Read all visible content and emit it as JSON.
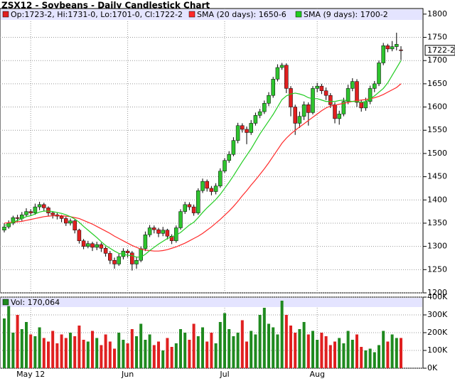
{
  "chart_data": [
    {
      "type": "candlestick",
      "title": "ZSX12 - Soybeans - Daily Candlestick Chart",
      "legend_label": "Op:1723-2, Hi:1731-0, Lo:1701-0, Cl:1722-2",
      "last_price_label": "1722-2",
      "up_color": "#2ec42e",
      "down_color": "#e02020",
      "categories": [
        null,
        null,
        null,
        null,
        null,
        null,
        "May 12",
        null,
        null,
        null,
        null,
        null,
        null,
        null,
        null,
        null,
        null,
        null,
        null,
        null,
        null,
        null,
        null,
        null,
        null,
        null,
        null,
        null,
        "Jun",
        null,
        null,
        null,
        null,
        null,
        null,
        null,
        null,
        null,
        null,
        null,
        null,
        null,
        null,
        null,
        null,
        null,
        null,
        null,
        null,
        null,
        "Jul",
        null,
        null,
        null,
        null,
        null,
        null,
        null,
        null,
        null,
        null,
        null,
        null,
        null,
        null,
        null,
        null,
        null,
        null,
        null,
        null,
        "Aug",
        null,
        null,
        null,
        null,
        null,
        null,
        null,
        null,
        null,
        null,
        null,
        null,
        null,
        null,
        null,
        null,
        null,
        null,
        null
      ],
      "open": [
        1335,
        1342,
        1350,
        1362,
        1360,
        1368,
        1375,
        1372,
        1385,
        1390,
        1383,
        1372,
        1368,
        1365,
        1360,
        1350,
        1355,
        1335,
        1312,
        1300,
        1306,
        1298,
        1304,
        1296,
        1285,
        1270,
        1262,
        1278,
        1290,
        1286,
        1262,
        1270,
        1295,
        1325,
        1340,
        1336,
        1328,
        1335,
        1322,
        1312,
        1340,
        1375,
        1390,
        1385,
        1372,
        1420,
        1440,
        1425,
        1418,
        1430,
        1462,
        1485,
        1498,
        1528,
        1560,
        1552,
        1545,
        1565,
        1582,
        1590,
        1608,
        1625,
        1660,
        1685,
        1690,
        1640,
        1600,
        1565,
        1580,
        1605,
        1588,
        1640,
        1645,
        1635,
        1625,
        1605,
        1575,
        1585,
        1612,
        1640,
        1655,
        1610,
        1598,
        1612,
        1640,
        1650,
        1695,
        1732,
        1725,
        1730,
        1723
      ],
      "high": [
        1350,
        1356,
        1366,
        1368,
        1374,
        1382,
        1380,
        1392,
        1396,
        1394,
        1386,
        1376,
        1372,
        1368,
        1364,
        1360,
        1358,
        1338,
        1316,
        1312,
        1310,
        1310,
        1308,
        1300,
        1290,
        1276,
        1284,
        1296,
        1294,
        1290,
        1278,
        1300,
        1332,
        1346,
        1345,
        1340,
        1342,
        1338,
        1326,
        1345,
        1380,
        1396,
        1395,
        1390,
        1425,
        1446,
        1444,
        1430,
        1436,
        1468,
        1490,
        1505,
        1535,
        1566,
        1565,
        1558,
        1572,
        1588,
        1596,
        1614,
        1632,
        1665,
        1692,
        1695,
        1694,
        1645,
        1605,
        1590,
        1612,
        1610,
        1645,
        1652,
        1650,
        1642,
        1630,
        1610,
        1592,
        1620,
        1648,
        1662,
        1660,
        1615,
        1620,
        1646,
        1656,
        1700,
        1738,
        1736,
        1742,
        1760,
        1731
      ],
      "low": [
        1330,
        1338,
        1346,
        1352,
        1355,
        1364,
        1366,
        1368,
        1378,
        1376,
        1366,
        1360,
        1358,
        1352,
        1344,
        1345,
        1328,
        1306,
        1294,
        1296,
        1290,
        1292,
        1288,
        1278,
        1262,
        1252,
        1258,
        1272,
        1276,
        1248,
        1252,
        1266,
        1290,
        1320,
        1328,
        1320,
        1322,
        1315,
        1305,
        1308,
        1336,
        1370,
        1378,
        1366,
        1368,
        1415,
        1418,
        1410,
        1412,
        1426,
        1458,
        1480,
        1494,
        1522,
        1545,
        1520,
        1540,
        1560,
        1576,
        1585,
        1602,
        1620,
        1655,
        1680,
        1630,
        1580,
        1540,
        1555,
        1572,
        1560,
        1584,
        1632,
        1628,
        1615,
        1598,
        1565,
        1562,
        1580,
        1606,
        1634,
        1600,
        1590,
        1592,
        1606,
        1632,
        1645,
        1690,
        1718,
        1720,
        1722,
        1701
      ],
      "close": [
        1342,
        1350,
        1362,
        1360,
        1368,
        1375,
        1372,
        1385,
        1390,
        1383,
        1372,
        1368,
        1365,
        1360,
        1350,
        1355,
        1335,
        1312,
        1300,
        1306,
        1298,
        1304,
        1296,
        1285,
        1270,
        1262,
        1278,
        1290,
        1286,
        1262,
        1270,
        1295,
        1325,
        1340,
        1336,
        1328,
        1335,
        1322,
        1312,
        1340,
        1375,
        1390,
        1385,
        1372,
        1420,
        1440,
        1425,
        1418,
        1430,
        1462,
        1485,
        1498,
        1528,
        1560,
        1552,
        1545,
        1565,
        1582,
        1590,
        1608,
        1625,
        1660,
        1685,
        1690,
        1640,
        1600,
        1565,
        1580,
        1605,
        1588,
        1640,
        1645,
        1635,
        1625,
        1605,
        1575,
        1585,
        1612,
        1640,
        1655,
        1610,
        1598,
        1612,
        1640,
        1650,
        1695,
        1732,
        1725,
        1730,
        1735,
        1722
      ],
      "series": [
        {
          "name": "SMA (20 days): 1650-6",
          "color": "#ff2a2a",
          "values": [
            1350,
            1351,
            1352,
            1353,
            1354,
            1356,
            1358,
            1360,
            1362,
            1364,
            1365,
            1366,
            1366,
            1366,
            1365,
            1364,
            1362,
            1360,
            1356,
            1352,
            1348,
            1343,
            1338,
            1333,
            1328,
            1322,
            1317,
            1312,
            1307,
            1302,
            1298,
            1294,
            1292,
            1291,
            1290,
            1290,
            1291,
            1293,
            1296,
            1299,
            1303,
            1307,
            1312,
            1317,
            1322,
            1328,
            1335,
            1342,
            1350,
            1358,
            1367,
            1376,
            1386,
            1397,
            1409,
            1420,
            1432,
            1443,
            1455,
            1467,
            1480,
            1494,
            1508,
            1522,
            1533,
            1542,
            1550,
            1557,
            1564,
            1571,
            1578,
            1585,
            1592,
            1598,
            1602,
            1604,
            1606,
            1608,
            1610,
            1612,
            1614,
            1615,
            1616,
            1618,
            1620,
            1623,
            1627,
            1632,
            1637,
            1642,
            1650
          ]
        },
        {
          "name": "SMA (9 days): 1700-2",
          "color": "#22cc22",
          "values": [
            1345,
            1348,
            1352,
            1356,
            1360,
            1364,
            1366,
            1370,
            1374,
            1376,
            1376,
            1375,
            1373,
            1371,
            1368,
            1364,
            1359,
            1352,
            1343,
            1335,
            1327,
            1319,
            1310,
            1302,
            1296,
            1290,
            1285,
            1283,
            1281,
            1280,
            1277,
            1277,
            1283,
            1291,
            1298,
            1305,
            1311,
            1317,
            1321,
            1324,
            1330,
            1338,
            1346,
            1352,
            1362,
            1373,
            1383,
            1392,
            1401,
            1412,
            1425,
            1438,
            1452,
            1467,
            1482,
            1496,
            1510,
            1526,
            1542,
            1556,
            1570,
            1584,
            1600,
            1616,
            1624,
            1628,
            1630,
            1628,
            1625,
            1620,
            1618,
            1618,
            1615,
            1612,
            1612,
            1612,
            1614,
            1615,
            1613,
            1612,
            1612,
            1610,
            1612,
            1618,
            1624,
            1632,
            1640,
            1652,
            1668,
            1684,
            1700
          ]
        }
      ],
      "ylim": [
        1200,
        1812
      ],
      "yticks": [
        1200,
        1250,
        1300,
        1350,
        1400,
        1450,
        1500,
        1550,
        1600,
        1650,
        1700,
        1750,
        1800
      ],
      "grid": true
    },
    {
      "type": "volume",
      "legend_label": "Vol: 170,064",
      "color": "#1f8a1f",
      "values": [
        280000,
        350000,
        200000,
        300000,
        220000,
        260000,
        190000,
        180000,
        230000,
        170000,
        150000,
        210000,
        140000,
        190000,
        170000,
        200000,
        180000,
        240000,
        160000,
        150000,
        210000,
        170000,
        130000,
        190000,
        150000,
        110000,
        200000,
        160000,
        140000,
        220000,
        180000,
        250000,
        160000,
        190000,
        130000,
        150000,
        100000,
        170000,
        120000,
        140000,
        220000,
        200000,
        160000,
        250000,
        180000,
        230000,
        150000,
        200000,
        140000,
        260000,
        310000,
        220000,
        180000,
        200000,
        270000,
        150000,
        210000,
        190000,
        300000,
        340000,
        250000,
        230000,
        190000,
        380000,
        300000,
        240000,
        200000,
        220000,
        260000,
        190000,
        210000,
        160000,
        200000,
        180000,
        130000,
        150000,
        170000,
        140000,
        210000,
        160000,
        190000,
        120000,
        100000,
        110000,
        90000,
        130000,
        210000,
        150000,
        190000,
        170000,
        170064
      ],
      "ylim": [
        0,
        400000
      ],
      "yticks": [
        {
          "value": 0,
          "label": "0K"
        },
        {
          "value": 100000,
          "label": "100K"
        },
        {
          "value": 200000,
          "label": "200K"
        },
        {
          "value": 300000,
          "label": "300K"
        },
        {
          "value": 400000,
          "label": "400K"
        }
      ],
      "grid": true
    }
  ]
}
